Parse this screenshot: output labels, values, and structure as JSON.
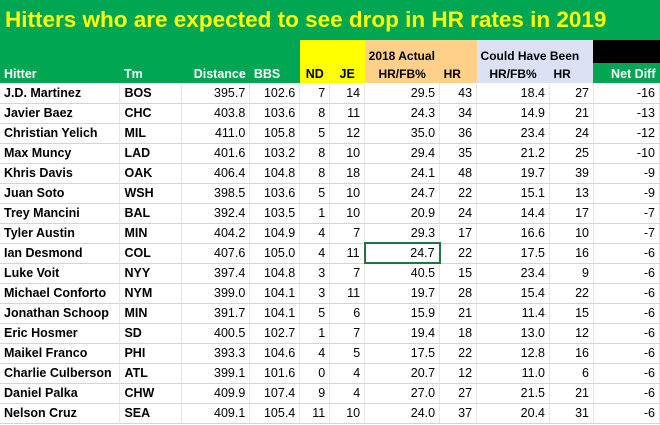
{
  "title": "Hitters who are expected to see drop in HR rates in 2019",
  "headers": {
    "hitter": "Hitter",
    "team": "Tm",
    "distance": "Distance",
    "bbs": "BBS",
    "nd": "ND",
    "je": "JE",
    "actual_group": "2018 Actual",
    "actual_hrfb": "HR/FB%",
    "actual_hr": "HR",
    "could_group": "Could Have Been",
    "could_hrfb": "HR/FB%",
    "could_hr": "HR",
    "net_diff": "Net Diff"
  },
  "colors": {
    "title_bg": "#00a651",
    "title_text": "#ffff00",
    "nd_je_header": "#ffff00",
    "actual_header": "#ffd08a",
    "could_header": "#dbe0f3",
    "selected_cell_border": "#217346"
  },
  "rows": [
    [
      "J.D. Martinez",
      "BOS",
      "395.7",
      "102.6",
      "7",
      "14",
      "29.5",
      "43",
      "18.4",
      "27",
      "-16"
    ],
    [
      "Javier Baez",
      "CHC",
      "403.8",
      "103.6",
      "8",
      "11",
      "24.3",
      "34",
      "14.9",
      "21",
      "-13"
    ],
    [
      "Christian Yelich",
      "MIL",
      "411.0",
      "105.8",
      "5",
      "12",
      "35.0",
      "36",
      "23.4",
      "24",
      "-12"
    ],
    [
      "Max Muncy",
      "LAD",
      "401.6",
      "103.2",
      "8",
      "10",
      "29.4",
      "35",
      "21.2",
      "25",
      "-10"
    ],
    [
      "Khris Davis",
      "OAK",
      "406.4",
      "104.8",
      "8",
      "18",
      "24.1",
      "48",
      "19.7",
      "39",
      "-9"
    ],
    [
      "Juan Soto",
      "WSH",
      "398.5",
      "103.6",
      "5",
      "10",
      "24.7",
      "22",
      "15.1",
      "13",
      "-9"
    ],
    [
      "Trey Mancini",
      "BAL",
      "392.4",
      "103.5",
      "1",
      "10",
      "20.9",
      "24",
      "14.4",
      "17",
      "-7"
    ],
    [
      "Tyler Austin",
      "MIN",
      "404.2",
      "104.9",
      "4",
      "7",
      "29.3",
      "17",
      "16.6",
      "10",
      "-7"
    ],
    [
      "Ian Desmond",
      "COL",
      "407.6",
      "105.0",
      "4",
      "11",
      "24.7",
      "22",
      "17.5",
      "16",
      "-6"
    ],
    [
      "Luke Voit",
      "NYY",
      "397.4",
      "104.8",
      "3",
      "7",
      "40.5",
      "15",
      "23.4",
      "9",
      "-6"
    ],
    [
      "Michael Conforto",
      "NYM",
      "399.0",
      "104.1",
      "3",
      "11",
      "19.7",
      "28",
      "15.4",
      "22",
      "-6"
    ],
    [
      "Jonathan Schoop",
      "MIN",
      "391.7",
      "104.1",
      "5",
      "6",
      "15.9",
      "21",
      "11.4",
      "15",
      "-6"
    ],
    [
      "Eric Hosmer",
      "SD",
      "400.5",
      "102.7",
      "1",
      "7",
      "19.4",
      "18",
      "13.0",
      "12",
      "-6"
    ],
    [
      "Maikel Franco",
      "PHI",
      "393.3",
      "104.6",
      "4",
      "5",
      "17.5",
      "22",
      "12.8",
      "16",
      "-6"
    ],
    [
      "Charlie Culberson",
      "ATL",
      "399.1",
      "101.6",
      "0",
      "4",
      "20.7",
      "12",
      "11.0",
      "6",
      "-6"
    ],
    [
      "Daniel Palka",
      "CHW",
      "409.9",
      "107.4",
      "9",
      "4",
      "27.0",
      "27",
      "21.5",
      "21",
      "-6"
    ],
    [
      "Nelson Cruz",
      "SEA",
      "409.1",
      "105.4",
      "11",
      "10",
      "24.0",
      "37",
      "20.4",
      "31",
      "-6"
    ]
  ]
}
